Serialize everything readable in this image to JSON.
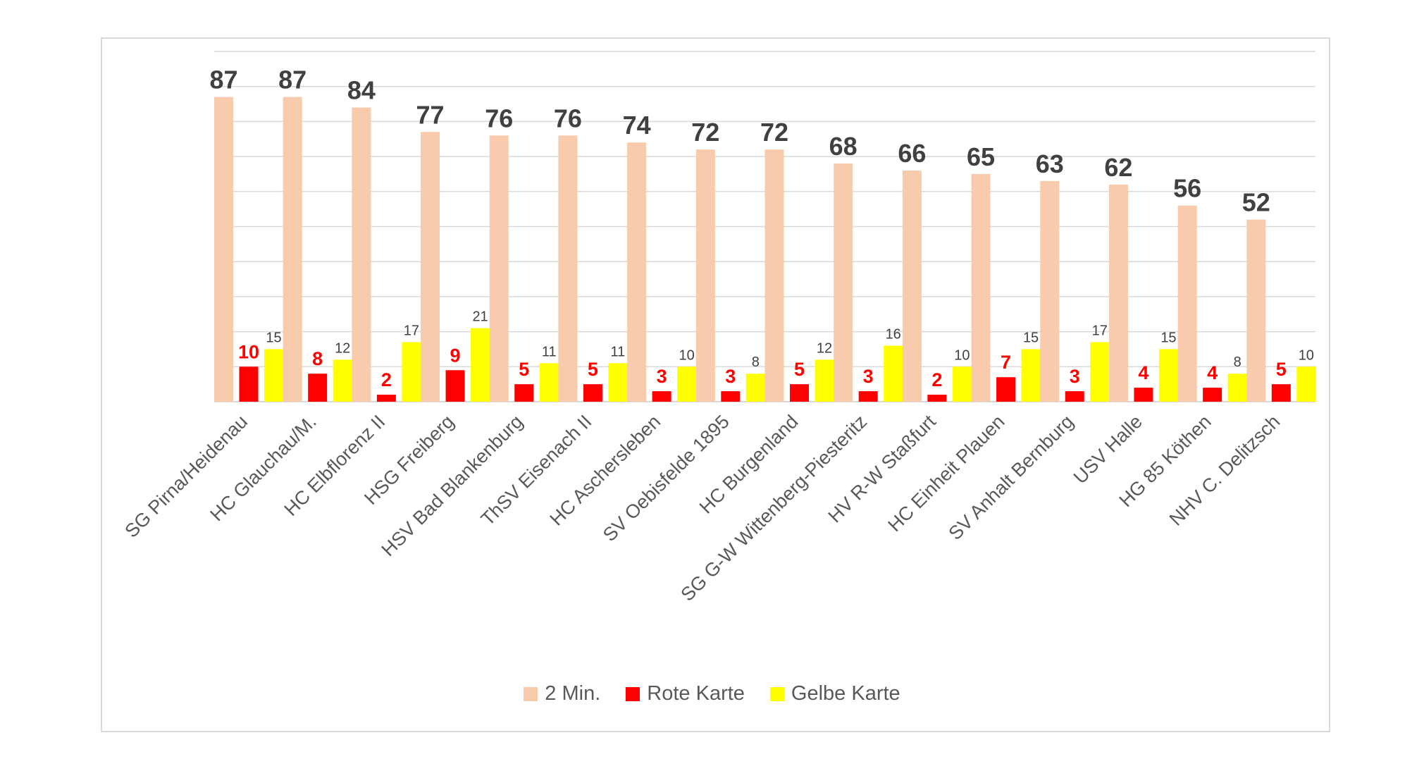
{
  "chart_data": {
    "type": "bar",
    "title": "",
    "xlabel": "",
    "ylabel": "",
    "ylim": [
      0,
      100
    ],
    "grid": true,
    "gridline_step": 10,
    "legend_position": "bottom",
    "categories": [
      "SG Pirna/Heidenau",
      "HC Glauchau/M.",
      "HC Elbflorenz II",
      "HSG Freiberg",
      "HSV Bad Blankenburg",
      "ThSV Eisenach II",
      "HC Aschersleben",
      "SV Oebisfelde 1895",
      "HC Burgenland",
      "SG G-W Wittenberg-Piesteritz",
      "HV R-W Staßfurt",
      "HC Einheit Plauen",
      "SV Anhalt Bernburg",
      "USV Halle",
      "HG 85 Köthen",
      "NHV C. Delitzsch"
    ],
    "series": [
      {
        "name": "2 Min.",
        "color": "#f8cbad",
        "label_color": "#404040",
        "values": [
          87,
          87,
          84,
          77,
          76,
          76,
          74,
          72,
          72,
          68,
          66,
          65,
          63,
          62,
          56,
          52
        ]
      },
      {
        "name": "Rote Karte",
        "color": "#ff0000",
        "label_color": "#ff0000",
        "values": [
          10,
          8,
          2,
          9,
          5,
          5,
          3,
          3,
          5,
          3,
          2,
          7,
          3,
          4,
          4,
          5
        ]
      },
      {
        "name": "Gelbe Karte",
        "color": "#ffff00",
        "label_color": "#404040",
        "values": [
          15,
          12,
          17,
          21,
          11,
          11,
          10,
          8,
          12,
          16,
          10,
          15,
          17,
          15,
          8,
          10
        ]
      }
    ]
  },
  "legend": {
    "items": [
      {
        "label": "2 Min.",
        "color": "#f8cbad"
      },
      {
        "label": "Rote Karte",
        "color": "#ff0000"
      },
      {
        "label": "Gelbe Karte",
        "color": "#ffff00"
      }
    ]
  }
}
